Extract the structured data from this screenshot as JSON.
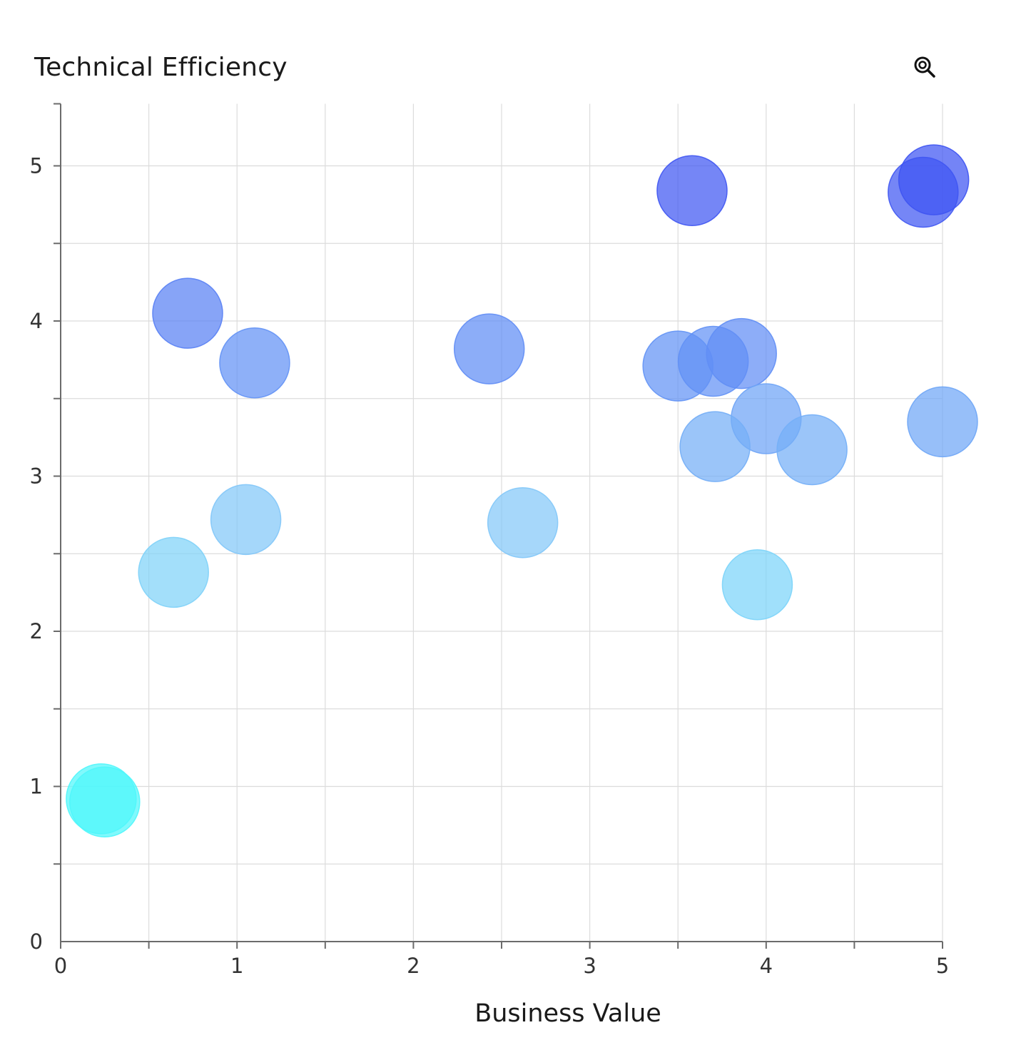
{
  "chart_data": {
    "type": "scatter",
    "title": "Technical Efficiency",
    "xlabel": "Business Value",
    "ylabel": "",
    "xlim": [
      0,
      5
    ],
    "ylim": [
      0,
      5.4
    ],
    "x_ticks": [
      "0",
      "1",
      "2",
      "3",
      "4",
      "5"
    ],
    "y_ticks": [
      "0",
      "1",
      "2",
      "3",
      "4",
      "5"
    ],
    "grid": true,
    "legend": "none",
    "color_scale": {
      "low": "#4ff6fb",
      "mid": "#86cdf8",
      "high": "#3e54f2",
      "note_field": "y"
    },
    "points": [
      {
        "x": 0.23,
        "y": 0.92
      },
      {
        "x": 0.25,
        "y": 0.9
      },
      {
        "x": 0.64,
        "y": 2.38
      },
      {
        "x": 1.05,
        "y": 2.72
      },
      {
        "x": 0.72,
        "y": 4.05
      },
      {
        "x": 1.1,
        "y": 3.73
      },
      {
        "x": 2.43,
        "y": 3.82
      },
      {
        "x": 2.62,
        "y": 2.7
      },
      {
        "x": 3.58,
        "y": 4.84
      },
      {
        "x": 3.5,
        "y": 3.71
      },
      {
        "x": 3.7,
        "y": 3.74
      },
      {
        "x": 3.86,
        "y": 3.79
      },
      {
        "x": 4.0,
        "y": 3.37
      },
      {
        "x": 3.71,
        "y": 3.19
      },
      {
        "x": 4.26,
        "y": 3.17
      },
      {
        "x": 3.95,
        "y": 2.3
      },
      {
        "x": 5.0,
        "y": 3.35
      },
      {
        "x": 4.89,
        "y": 4.83
      },
      {
        "x": 4.95,
        "y": 4.91
      }
    ]
  },
  "toolbar": {
    "zoom_icon": "zoom-magnifier-icon"
  }
}
